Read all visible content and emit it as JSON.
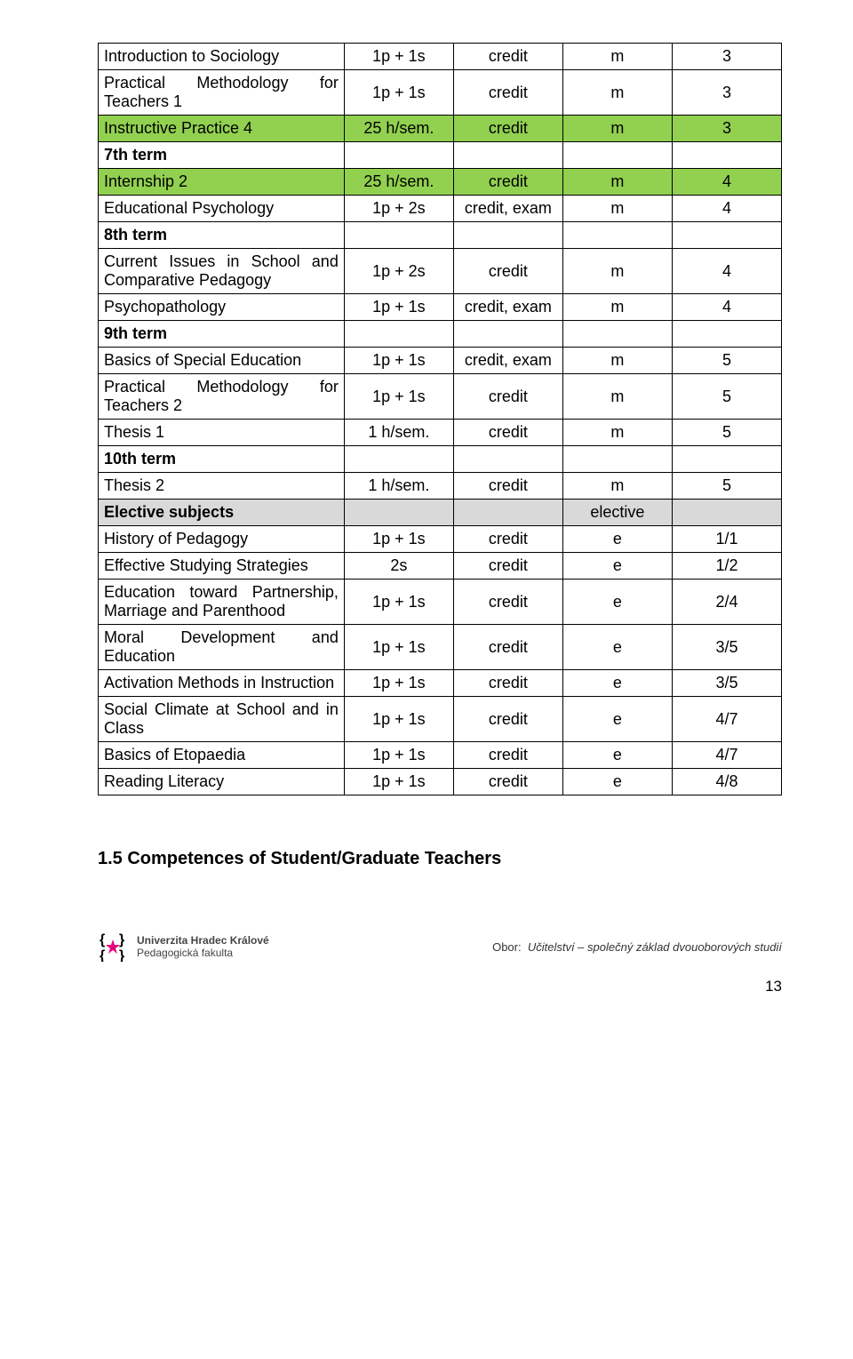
{
  "table": {
    "rows": [
      {
        "cells": [
          "Introduction to Sociology",
          "1p + 1s",
          "credit",
          "m",
          "3"
        ]
      },
      {
        "cells": [
          "Practical Methodology for Teachers 1",
          "1p + 1s",
          "credit",
          "m",
          "3"
        ]
      },
      {
        "rowClass": "green",
        "cells": [
          "Instructive Practice 4",
          "25 h/sem.",
          "credit",
          "m",
          "3"
        ]
      },
      {
        "cells": [
          "7th term",
          "",
          "",
          "",
          ""
        ],
        "firstBold": true
      },
      {
        "rowClass": "green",
        "cells": [
          "Internship 2",
          "25 h/sem.",
          "credit",
          "m",
          "4"
        ]
      },
      {
        "cells": [
          "Educational Psychology",
          "1p + 2s",
          "credit, exam",
          "m",
          "4"
        ]
      },
      {
        "cells": [
          "8th term",
          "",
          "",
          "",
          ""
        ],
        "firstBold": true
      },
      {
        "cells": [
          "Current Issues in School and Comparative Pedagogy",
          "1p + 2s",
          "credit",
          "m",
          "4"
        ]
      },
      {
        "cells": [
          "Psychopathology",
          "1p + 1s",
          "credit, exam",
          "m",
          "4"
        ]
      },
      {
        "cells": [
          "9th term",
          "",
          "",
          "",
          ""
        ],
        "firstBold": true
      },
      {
        "cells": [
          "Basics of Special Education",
          "1p + 1s",
          "credit, exam",
          "m",
          "5"
        ]
      },
      {
        "cells": [
          "Practical Methodology for Teachers 2",
          "1p + 1s",
          "credit",
          "m",
          "5"
        ]
      },
      {
        "cells": [
          "Thesis 1",
          "1 h/sem.",
          "credit",
          "m",
          "5"
        ]
      },
      {
        "cells": [
          "10th term",
          "",
          "",
          "",
          ""
        ],
        "firstBold": true
      },
      {
        "cells": [
          "Thesis 2",
          "1 h/sem.",
          "credit",
          "m",
          "5"
        ]
      },
      {
        "rowClass": "gray",
        "cells": [
          "Elective subjects",
          "",
          "",
          "elective",
          ""
        ]
      },
      {
        "cells": [
          "History of Pedagogy",
          "1p + 1s",
          "credit",
          "e",
          "1/1"
        ]
      },
      {
        "cells": [
          "Effective Studying Strategies",
          "2s",
          "credit",
          "e",
          "1/2"
        ]
      },
      {
        "cells": [
          "Education toward Partnership, Marriage and Parenthood",
          "1p + 1s",
          "credit",
          "e",
          "2/4"
        ]
      },
      {
        "cells": [
          "Moral Development and Education",
          "1p + 1s",
          "credit",
          "e",
          "3/5"
        ]
      },
      {
        "cells": [
          "Activation Methods in Instruction",
          "1p + 1s",
          "credit",
          "e",
          "3/5"
        ]
      },
      {
        "cells": [
          "Social Climate at School and in Class",
          "1p + 1s",
          "credit",
          "e",
          "4/7"
        ]
      },
      {
        "cells": [
          "Basics of Etopaedia",
          "1p + 1s",
          "credit",
          "e",
          "4/7"
        ]
      },
      {
        "cells": [
          "Reading Literacy",
          "1p + 1s",
          "credit",
          "e",
          "4/8"
        ]
      }
    ]
  },
  "sectionHeading": "1.5 Competences of Student/Graduate Teachers",
  "footer": {
    "uni_line1": "Univerzita Hradec Králové",
    "uni_line2": "Pedagogická fakulta",
    "obor_label": "Obor:",
    "obor_value": "Učitelství – společný základ dvouoborových studií",
    "logo_color": "#E6007E"
  },
  "pageNumber": "13"
}
